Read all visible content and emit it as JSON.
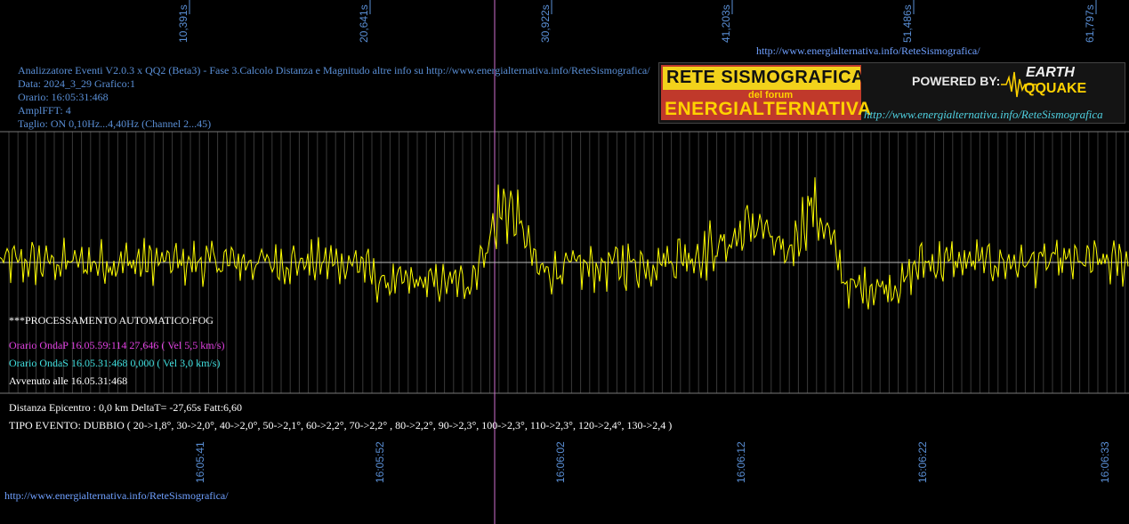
{
  "chart_data": {
    "type": "line",
    "title": "Analizzatore Eventi V2.0.3 x QQ2 (Beta3) - Fase 3.Calcolo Distanza e Magnitudo altre info su http://www.energialternativa.info/ReteSismografica/",
    "top_ticks": [
      "10,391s",
      "20,641s",
      "30,922s",
      "41,203s",
      "51,486s",
      "61,797s"
    ],
    "bottom_ticks": [
      "16:05:41",
      "16:05:52",
      "16:06:02",
      "16:06:12",
      "16:06:22",
      "16:06:33"
    ],
    "series": [
      {
        "color": "#ffff00",
        "x_range_s": [
          0,
          62.6
        ],
        "envelope": [
          {
            "t": 0,
            "amp": 0.35,
            "offset": 0
          },
          {
            "t": 20,
            "amp": 0.35,
            "offset": 0
          },
          {
            "t": 21,
            "amp": 0.3,
            "offset": -0.35
          },
          {
            "t": 26,
            "amp": 0.3,
            "offset": -0.35
          },
          {
            "t": 27,
            "amp": 0.4,
            "offset": 0.3
          },
          {
            "t": 28,
            "amp": 0.7,
            "offset": 1.05
          },
          {
            "t": 29,
            "amp": 0.4,
            "offset": 0.55
          },
          {
            "t": 29.8,
            "amp": 0.35,
            "offset": -0.15
          },
          {
            "t": 36,
            "amp": 0.4,
            "offset": 0
          },
          {
            "t": 40,
            "amp": 0.45,
            "offset": 0.25
          },
          {
            "t": 42,
            "amp": 0.5,
            "offset": 0.7
          },
          {
            "t": 43.5,
            "amp": 0.35,
            "offset": 0.05
          },
          {
            "t": 45,
            "amp": 0.5,
            "offset": 1.0
          },
          {
            "t": 46,
            "amp": 0.35,
            "offset": 0.45
          },
          {
            "t": 47,
            "amp": 0.3,
            "offset": -0.45
          },
          {
            "t": 50,
            "amp": 0.3,
            "offset": -0.4
          },
          {
            "t": 51,
            "amp": 0.35,
            "offset": 0
          },
          {
            "t": 62.6,
            "amp": 0.35,
            "offset": 0
          }
        ]
      }
    ]
  },
  "header": {
    "line1": "Analizzatore Eventi V2.0.3 x QQ2 (Beta3) - Fase 3.Calcolo Distanza e Magnitudo altre info su http://www.energialternativa.info/ReteSismografica/",
    "data": "Data: 2024_3_29 Grafico:1",
    "orario": "Orario: 16:05:31:468",
    "ampl": "AmplFFT: 4",
    "taglio": "Taglio: ON 0,10Hz...4,40Hz      (Channel 2...45)"
  },
  "top_url": "http://www.energialternativa.info/ReteSismografica/",
  "logo": {
    "rete": "RETE SISMOGRAFICA",
    "del_forum": "del forum",
    "energialternativa": "ENERGIALTERNATIVA",
    "powered_by": "POWERED BY:",
    "earth": "EARTH",
    "qquake": "QQUAKE",
    "url": "http://www.energialternativa.info/ReteSismografica"
  },
  "info": {
    "processamento": "***PROCESSAMENTO AUTOMATICO:FOG",
    "onda_p": "Orario OndaP 16.05.59:114  27,646 ( Vel 5,5 km/s)",
    "onda_s": "Orario OndaS 16.05.31:468  0,000 ( Vel 3,0 km/s)",
    "avvenuto": "Avvenuto alle 16.05.31:468",
    "distanza": "Distanza Epicentro : 0,0 km DeltaT= -27,65s  Fatt:6,60",
    "tipo": "TIPO EVENTO: DUBBIO ( 20->1,8°, 30->2,0°, 40->2,0°, 50->2,1°, 60->2,2°, 70->2,2° , 80->2,2°, 90->2,3°, 100->2,3°, 110->2,3°, 120->2,4°, 130->2,4 )"
  },
  "bottom_url": "http://www.energialternativa.info/ReteSismografica/",
  "colors": {
    "background": "#000000",
    "signal": "#ffff00",
    "grid": "#555555",
    "axis_label": "#5a8fd6",
    "p_wave": "#e040e0",
    "s_wave": "#40e0e0",
    "marker_line": "#d070d0"
  }
}
